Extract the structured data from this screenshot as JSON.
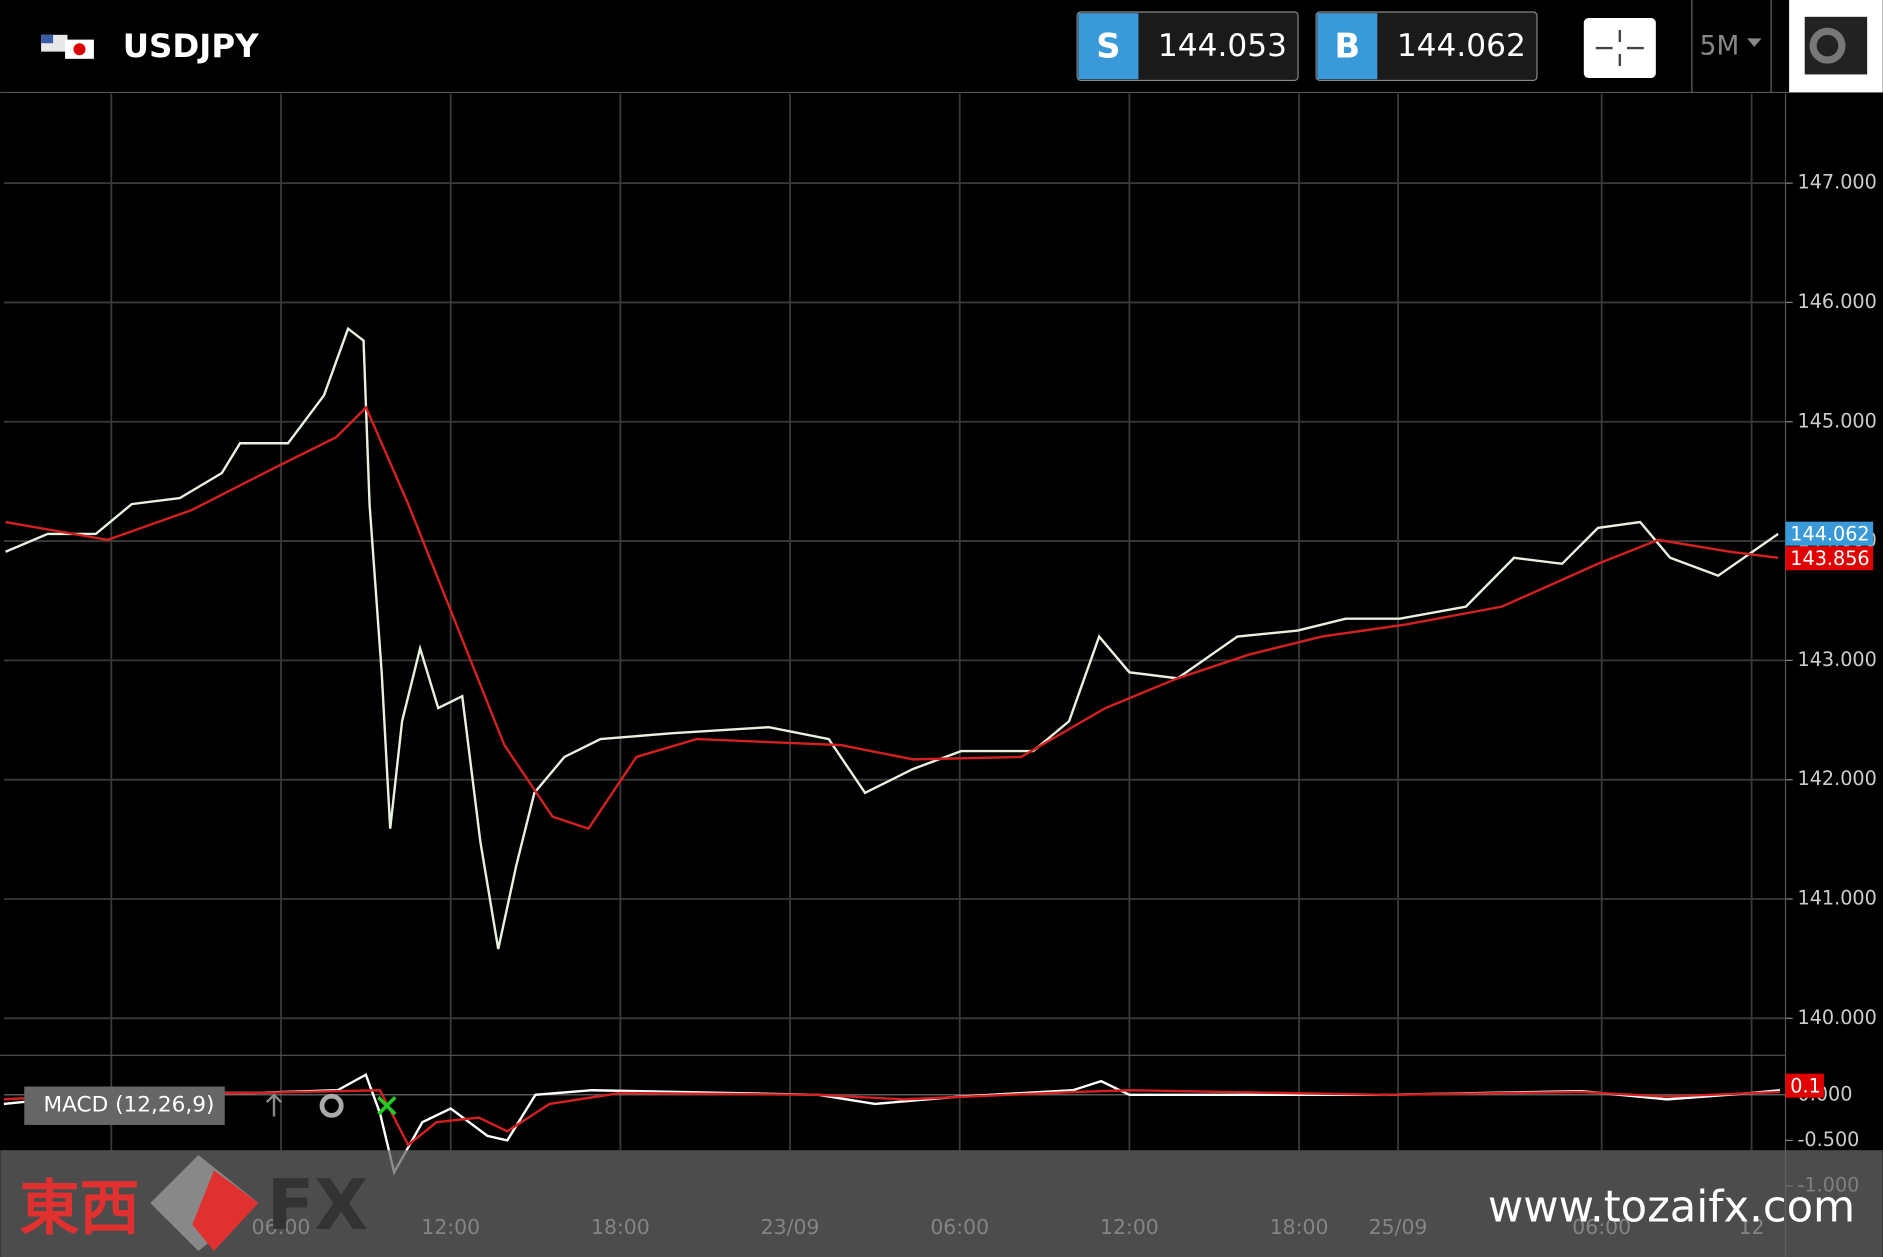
{
  "header": {
    "symbol": "USDJPY",
    "sell_label": "S",
    "sell": 144.053,
    "buy_label": "B",
    "buy": 144.062,
    "timeframe": "5M"
  },
  "chart_data": [
    {
      "type": "line",
      "xlim": [
        -3.8,
        59.2
      ],
      "ylim": [
        139.7,
        147.75
      ],
      "xticks": [
        {
          "value": 6,
          "label": "06:00"
        },
        {
          "value": 12,
          "label": "12:00"
        },
        {
          "value": 18,
          "label": "18:00"
        },
        {
          "value": 24,
          "label": "23/09"
        },
        {
          "value": 30,
          "label": "06:00"
        },
        {
          "value": 36,
          "label": "12:00"
        },
        {
          "value": 42,
          "label": "18:00"
        },
        {
          "value": 45.5,
          "label": "25/09"
        },
        {
          "value": 52.7,
          "label": "06:00"
        },
        {
          "value": 58,
          "label": "12"
        }
      ],
      "gridx": [
        0,
        6,
        12,
        18,
        24,
        30,
        36,
        42,
        45.5,
        52.7,
        58
      ],
      "yticks": [
        {
          "value": 140,
          "label": "140.000"
        },
        {
          "value": 141,
          "label": "141.000"
        },
        {
          "value": 142,
          "label": "142.000"
        },
        {
          "value": 143,
          "label": "143.000"
        },
        {
          "value": 144,
          "label": "144.000"
        },
        {
          "value": 145,
          "label": "145.000"
        },
        {
          "value": 146,
          "label": "146.000"
        },
        {
          "value": 147,
          "label": "147.000"
        }
      ],
      "grid": true,
      "series": [
        {
          "color": "#e8f0e0",
          "x": [
            -3.74,
            -2.25,
            -0.55,
            0.72,
            2.42,
            3.91,
            4.55,
            6.25,
            7.52,
            8.37,
            8.92,
            9.13,
            9.56,
            9.86,
            10.28,
            10.92,
            11.56,
            12.41,
            13.05,
            13.68,
            14.32,
            14.96,
            16.02,
            17.3,
            19.85,
            23.25,
            25.37,
            26.65,
            28.35,
            30.05,
            32.6,
            33.87,
            34.93,
            36.0,
            37.7,
            39.82,
            41.95,
            43.65,
            45.56,
            47.9,
            49.6,
            51.3,
            52.57,
            54.06,
            55.12,
            56.82,
            58.94
          ],
          "values": [
            143.91,
            144.06,
            144.06,
            144.31,
            144.36,
            144.57,
            144.82,
            144.82,
            145.22,
            145.78,
            145.68,
            144.31,
            142.9,
            141.59,
            142.49,
            143.1,
            142.6,
            142.7,
            141.48,
            140.58,
            141.28,
            141.89,
            142.19,
            142.34,
            142.39,
            142.44,
            142.34,
            141.89,
            142.09,
            142.24,
            142.24,
            142.49,
            143.2,
            142.9,
            142.85,
            143.2,
            143.25,
            143.35,
            143.35,
            143.45,
            143.86,
            143.81,
            144.11,
            144.16,
            143.86,
            143.71,
            144.06
          ]
        },
        {
          "color": "#d42020",
          "x": [
            -3.74,
            -0.13,
            2.85,
            5.82,
            7.95,
            9.01,
            10.5,
            12.2,
            13.9,
            15.6,
            16.87,
            18.57,
            20.7,
            25.8,
            28.35,
            32.17,
            35.15,
            37.7,
            40.25,
            42.8,
            45.77,
            49.17,
            52.57,
            54.7,
            57.25,
            58.94
          ],
          "values": [
            144.16,
            144.01,
            144.26,
            144.62,
            144.87,
            145.12,
            144.31,
            143.3,
            142.29,
            141.69,
            141.59,
            142.19,
            142.34,
            142.29,
            142.17,
            142.19,
            142.6,
            142.85,
            143.05,
            143.2,
            143.3,
            143.45,
            143.81,
            144.01,
            143.91,
            143.86
          ]
        }
      ],
      "price_labels": [
        {
          "value": 144.062,
          "color": "#3a9ad9"
        },
        {
          "value": 143.856,
          "color": "#e00000"
        }
      ]
    },
    {
      "type": "line",
      "title": "MACD (12,26,9)",
      "xlim": [
        -3.8,
        59.2
      ],
      "ylim": [
        -1.16,
        0.42
      ],
      "yticks": [
        {
          "value": 0,
          "label": "0.000"
        },
        {
          "value": -0.5,
          "label": "-0.500"
        },
        {
          "value": -1,
          "label": "-1.000"
        }
      ],
      "series": [
        {
          "color": "#ffffff",
          "x": [
            -3.8,
            0,
            5,
            8,
            9,
            9.5,
            10,
            11,
            12,
            13.3,
            14,
            15,
            17,
            25,
            27,
            30,
            34,
            35,
            36,
            45,
            52,
            55,
            58,
            59
          ],
          "values": [
            -0.1,
            0.02,
            0.02,
            0.05,
            0.22,
            -0.2,
            -0.85,
            -0.3,
            -0.15,
            -0.45,
            -0.5,
            0.0,
            0.05,
            0.0,
            -0.1,
            -0.02,
            0.05,
            0.15,
            0.0,
            0.0,
            0.04,
            -0.05,
            0.02,
            0.05
          ]
        },
        {
          "color": "#d42020",
          "x": [
            -3.8,
            0,
            5,
            8,
            9.5,
            10.5,
            11.5,
            13,
            14,
            15.5,
            18,
            25,
            28,
            34,
            36,
            45,
            52,
            55,
            59
          ],
          "values": [
            -0.05,
            0.01,
            0.02,
            0.04,
            0.05,
            -0.55,
            -0.3,
            -0.25,
            -0.4,
            -0.1,
            0.02,
            0.0,
            -0.05,
            0.03,
            0.05,
            0.0,
            0.03,
            -0.02,
            0.03
          ]
        }
      ],
      "price_labels": [
        {
          "value": 0.1,
          "color": "#e00000"
        }
      ]
    }
  ],
  "watermark": {
    "brand": "東西",
    "fx": "FX",
    "url": "www.tozaifx.com"
  }
}
